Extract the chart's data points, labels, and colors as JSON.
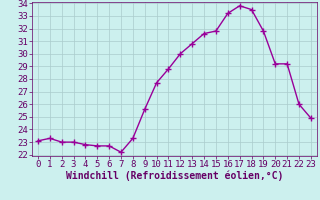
{
  "x": [
    0,
    1,
    2,
    3,
    4,
    5,
    6,
    7,
    8,
    9,
    10,
    11,
    12,
    13,
    14,
    15,
    16,
    17,
    18,
    19,
    20,
    21,
    22,
    23
  ],
  "y": [
    23.1,
    23.3,
    23.0,
    23.0,
    22.8,
    22.7,
    22.7,
    22.2,
    23.3,
    25.6,
    27.7,
    28.8,
    30.0,
    30.8,
    31.6,
    31.8,
    33.2,
    33.8,
    33.5,
    31.8,
    29.2,
    29.2,
    26.0,
    24.9
  ],
  "line_color": "#990099",
  "marker": "+",
  "marker_size": 4,
  "bg_color": "#ccf0ee",
  "grid_color": "#aacccc",
  "xlabel": "Windchill (Refroidissement éolien,°C)",
  "ylim": [
    22,
    34
  ],
  "xlim": [
    -0.5,
    23.5
  ],
  "yticks": [
    22,
    23,
    24,
    25,
    26,
    27,
    28,
    29,
    30,
    31,
    32,
    33,
    34
  ],
  "xticks": [
    0,
    1,
    2,
    3,
    4,
    5,
    6,
    7,
    8,
    9,
    10,
    11,
    12,
    13,
    14,
    15,
    16,
    17,
    18,
    19,
    20,
    21,
    22,
    23
  ],
  "tick_color": "#660066",
  "label_color": "#660066",
  "font_size": 6.5,
  "xlabel_size": 7.0,
  "line_width": 1.0,
  "marker_edge_width": 1.0
}
